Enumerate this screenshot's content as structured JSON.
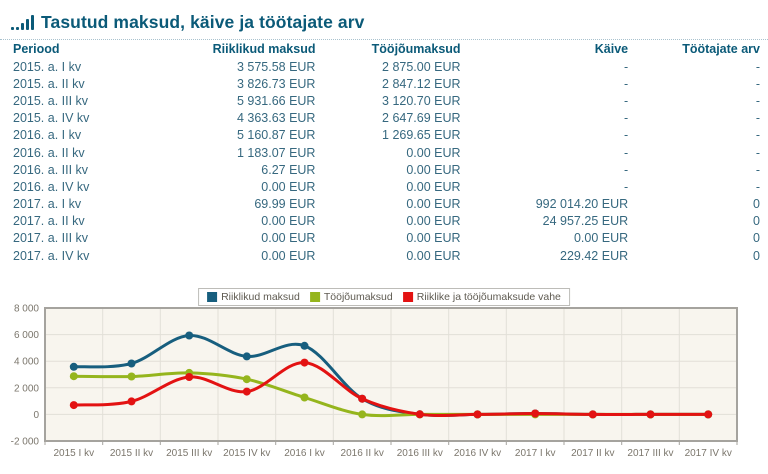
{
  "header": {
    "title": "Tasutud maksud, käive ja töötajate arv",
    "icon": "bar-chart-icon"
  },
  "table": {
    "columns": [
      "Periood",
      "Riiklikud maksud",
      "Tööjõumaksud",
      "Käive",
      "Töötajate arv"
    ],
    "rows": [
      [
        "2015. a. I kv",
        "3 575.58 EUR",
        "2 875.00 EUR",
        "-",
        "-"
      ],
      [
        "2015. a. II kv",
        "3 826.73 EUR",
        "2 847.12 EUR",
        "-",
        "-"
      ],
      [
        "2015. a. III kv",
        "5 931.66 EUR",
        "3 120.70 EUR",
        "-",
        "-"
      ],
      [
        "2015. a. IV kv",
        "4 363.63 EUR",
        "2 647.69 EUR",
        "-",
        "-"
      ],
      [
        "2016. a. I kv",
        "5 160.87 EUR",
        "1 269.65 EUR",
        "-",
        "-"
      ],
      [
        "2016. a. II kv",
        "1 183.07 EUR",
        "0.00 EUR",
        "-",
        "-"
      ],
      [
        "2016. a. III kv",
        "6.27 EUR",
        "0.00 EUR",
        "-",
        "-"
      ],
      [
        "2016. a. IV kv",
        "0.00 EUR",
        "0.00 EUR",
        "-",
        "-"
      ],
      [
        "2017. a. I kv",
        "69.99 EUR",
        "0.00 EUR",
        "992 014.20 EUR",
        "0"
      ],
      [
        "2017. a. II kv",
        "0.00 EUR",
        "0.00 EUR",
        "24 957.25 EUR",
        "0"
      ],
      [
        "2017. a. III kv",
        "0.00 EUR",
        "0.00 EUR",
        "0.00 EUR",
        "0"
      ],
      [
        "2017. a. IV kv",
        "0.00 EUR",
        "0.00 EUR",
        "229.42 EUR",
        "0"
      ]
    ]
  },
  "chart_data": {
    "type": "line",
    "smooth": true,
    "grid": true,
    "legend_position": "top",
    "x": [
      "2015 I kv",
      "2015 II kv",
      "2015 III kv",
      "2015 IV kv",
      "2016 I kv",
      "2016 II kv",
      "2016 III kv",
      "2016 IV kv",
      "2017 I kv",
      "2017 II kv",
      "2017 III kv",
      "2017 IV kv"
    ],
    "series": [
      {
        "name": "Riiklikud maksud",
        "color": "#175e7e",
        "values": [
          3575.58,
          3826.73,
          5931.66,
          4363.63,
          5160.87,
          1183.07,
          6.27,
          0,
          69.99,
          0,
          0,
          0
        ]
      },
      {
        "name": "Tööjõumaksud",
        "color": "#95b51d",
        "values": [
          2875.0,
          2847.12,
          3120.7,
          2647.69,
          1269.65,
          0,
          0,
          0,
          0,
          0,
          0,
          0
        ]
      },
      {
        "name": "Riiklike ja tööjõumaksude vahe",
        "color": "#e31212",
        "values": [
          700.58,
          979.61,
          2810.96,
          1715.94,
          3891.22,
          1183.07,
          6.27,
          0,
          69.99,
          0,
          0,
          0
        ]
      }
    ],
    "ylim": [
      -2000,
      8000
    ],
    "yticks": [
      8000,
      6000,
      4000,
      2000,
      0,
      -2000
    ],
    "ytick_labels": [
      "8 000",
      "6 000",
      "4 000",
      "2 000",
      "0",
      "-2 000"
    ],
    "colors": {
      "plot_bg": "#f8f5ee",
      "grid": "#e2dfd7",
      "plot_border": "#a5a39e",
      "axis_text": "#7b766c"
    }
  }
}
